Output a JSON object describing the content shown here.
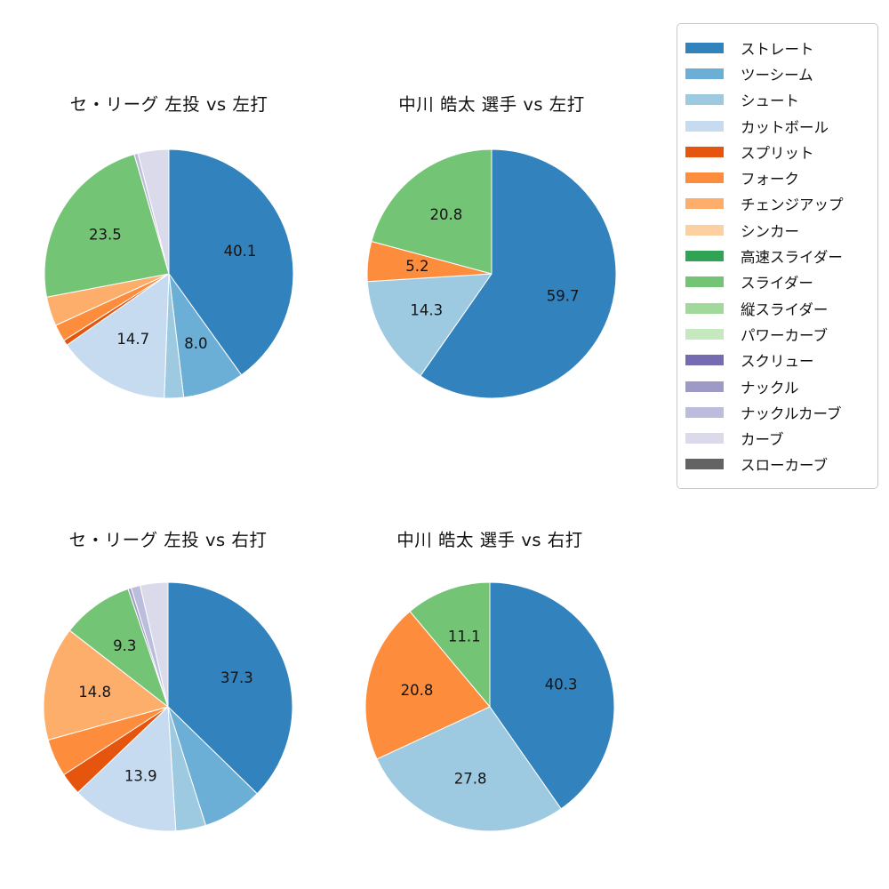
{
  "chart_data": [
    {
      "type": "pie",
      "title": "セ・リーグ 左投 vs 左打",
      "start_angle": "12-o-clock",
      "direction": "clockwise",
      "label_distance": 0.6,
      "slices": [
        {
          "name": "ストレート",
          "value": 40.1,
          "label_shown": true
        },
        {
          "name": "ツーシーム",
          "value": 8.0,
          "label_shown": true
        },
        {
          "name": "シュート",
          "value": 2.5,
          "label_shown": false
        },
        {
          "name": "カットボール",
          "value": 14.7,
          "label_shown": true
        },
        {
          "name": "スプリット",
          "value": 0.7,
          "label_shown": false
        },
        {
          "name": "フォーク",
          "value": 2.2,
          "label_shown": false
        },
        {
          "name": "チェンジアップ",
          "value": 3.8,
          "label_shown": false
        },
        {
          "name": "スライダー",
          "value": 23.5,
          "label_shown": true
        },
        {
          "name": "ナックルカーブ",
          "value": 0.5,
          "label_shown": false
        },
        {
          "name": "カーブ",
          "value": 4.0,
          "label_shown": false
        }
      ]
    },
    {
      "type": "pie",
      "title": "中川 皓太 選手 vs 左打",
      "start_angle": "12-o-clock",
      "direction": "clockwise",
      "label_distance": 0.6,
      "slices": [
        {
          "name": "ストレート",
          "value": 59.7,
          "label_shown": true
        },
        {
          "name": "シュート",
          "value": 14.3,
          "label_shown": true
        },
        {
          "name": "フォーク",
          "value": 5.2,
          "label_shown": true
        },
        {
          "name": "スライダー",
          "value": 20.8,
          "label_shown": true
        }
      ]
    },
    {
      "type": "pie",
      "title": "セ・リーグ 左投 vs 右打",
      "start_angle": "12-o-clock",
      "direction": "clockwise",
      "label_distance": 0.6,
      "slices": [
        {
          "name": "ストレート",
          "value": 37.3,
          "label_shown": true
        },
        {
          "name": "ツーシーム",
          "value": 7.8,
          "label_shown": false
        },
        {
          "name": "シュート",
          "value": 3.9,
          "label_shown": false
        },
        {
          "name": "カットボール",
          "value": 13.9,
          "label_shown": true
        },
        {
          "name": "スプリット",
          "value": 2.9,
          "label_shown": false
        },
        {
          "name": "フォーク",
          "value": 4.9,
          "label_shown": false
        },
        {
          "name": "チェンジアップ",
          "value": 14.8,
          "label_shown": true
        },
        {
          "name": "スライダー",
          "value": 9.3,
          "label_shown": true
        },
        {
          "name": "ナックル",
          "value": 0.4,
          "label_shown": false
        },
        {
          "name": "ナックルカーブ",
          "value": 1.2,
          "label_shown": false
        },
        {
          "name": "カーブ",
          "value": 3.6,
          "label_shown": false
        }
      ]
    },
    {
      "type": "pie",
      "title": "中川 皓太 選手 vs 右打",
      "start_angle": "12-o-clock",
      "direction": "clockwise",
      "label_distance": 0.6,
      "slices": [
        {
          "name": "ストレート",
          "value": 40.3,
          "label_shown": true
        },
        {
          "name": "シュート",
          "value": 27.8,
          "label_shown": true
        },
        {
          "name": "フォーク",
          "value": 20.8,
          "label_shown": true
        },
        {
          "name": "スライダー",
          "value": 11.1,
          "label_shown": true
        }
      ]
    }
  ],
  "legend": {
    "items": [
      {
        "label": "ストレート",
        "color": "#3182bd"
      },
      {
        "label": "ツーシーム",
        "color": "#6baed6"
      },
      {
        "label": "シュート",
        "color": "#9ecae1"
      },
      {
        "label": "カットボール",
        "color": "#c6dbef"
      },
      {
        "label": "スプリット",
        "color": "#e6550d"
      },
      {
        "label": "フォーク",
        "color": "#fd8d3c"
      },
      {
        "label": "チェンジアップ",
        "color": "#fdae6b"
      },
      {
        "label": "シンカー",
        "color": "#fdd0a2"
      },
      {
        "label": "高速スライダー",
        "color": "#31a354"
      },
      {
        "label": "スライダー",
        "color": "#74c476"
      },
      {
        "label": "縦スライダー",
        "color": "#a1d99b"
      },
      {
        "label": "パワーカーブ",
        "color": "#c7e9c0"
      },
      {
        "label": "スクリュー",
        "color": "#756bb1"
      },
      {
        "label": "ナックル",
        "color": "#9e9ac8"
      },
      {
        "label": "ナックルカーブ",
        "color": "#bcbddc"
      },
      {
        "label": "カーブ",
        "color": "#dadaeb"
      },
      {
        "label": "スローカーブ",
        "color": "#636363"
      }
    ]
  },
  "styles": {
    "wedge_stroke": "#ffffff",
    "label_color": "#141414"
  }
}
